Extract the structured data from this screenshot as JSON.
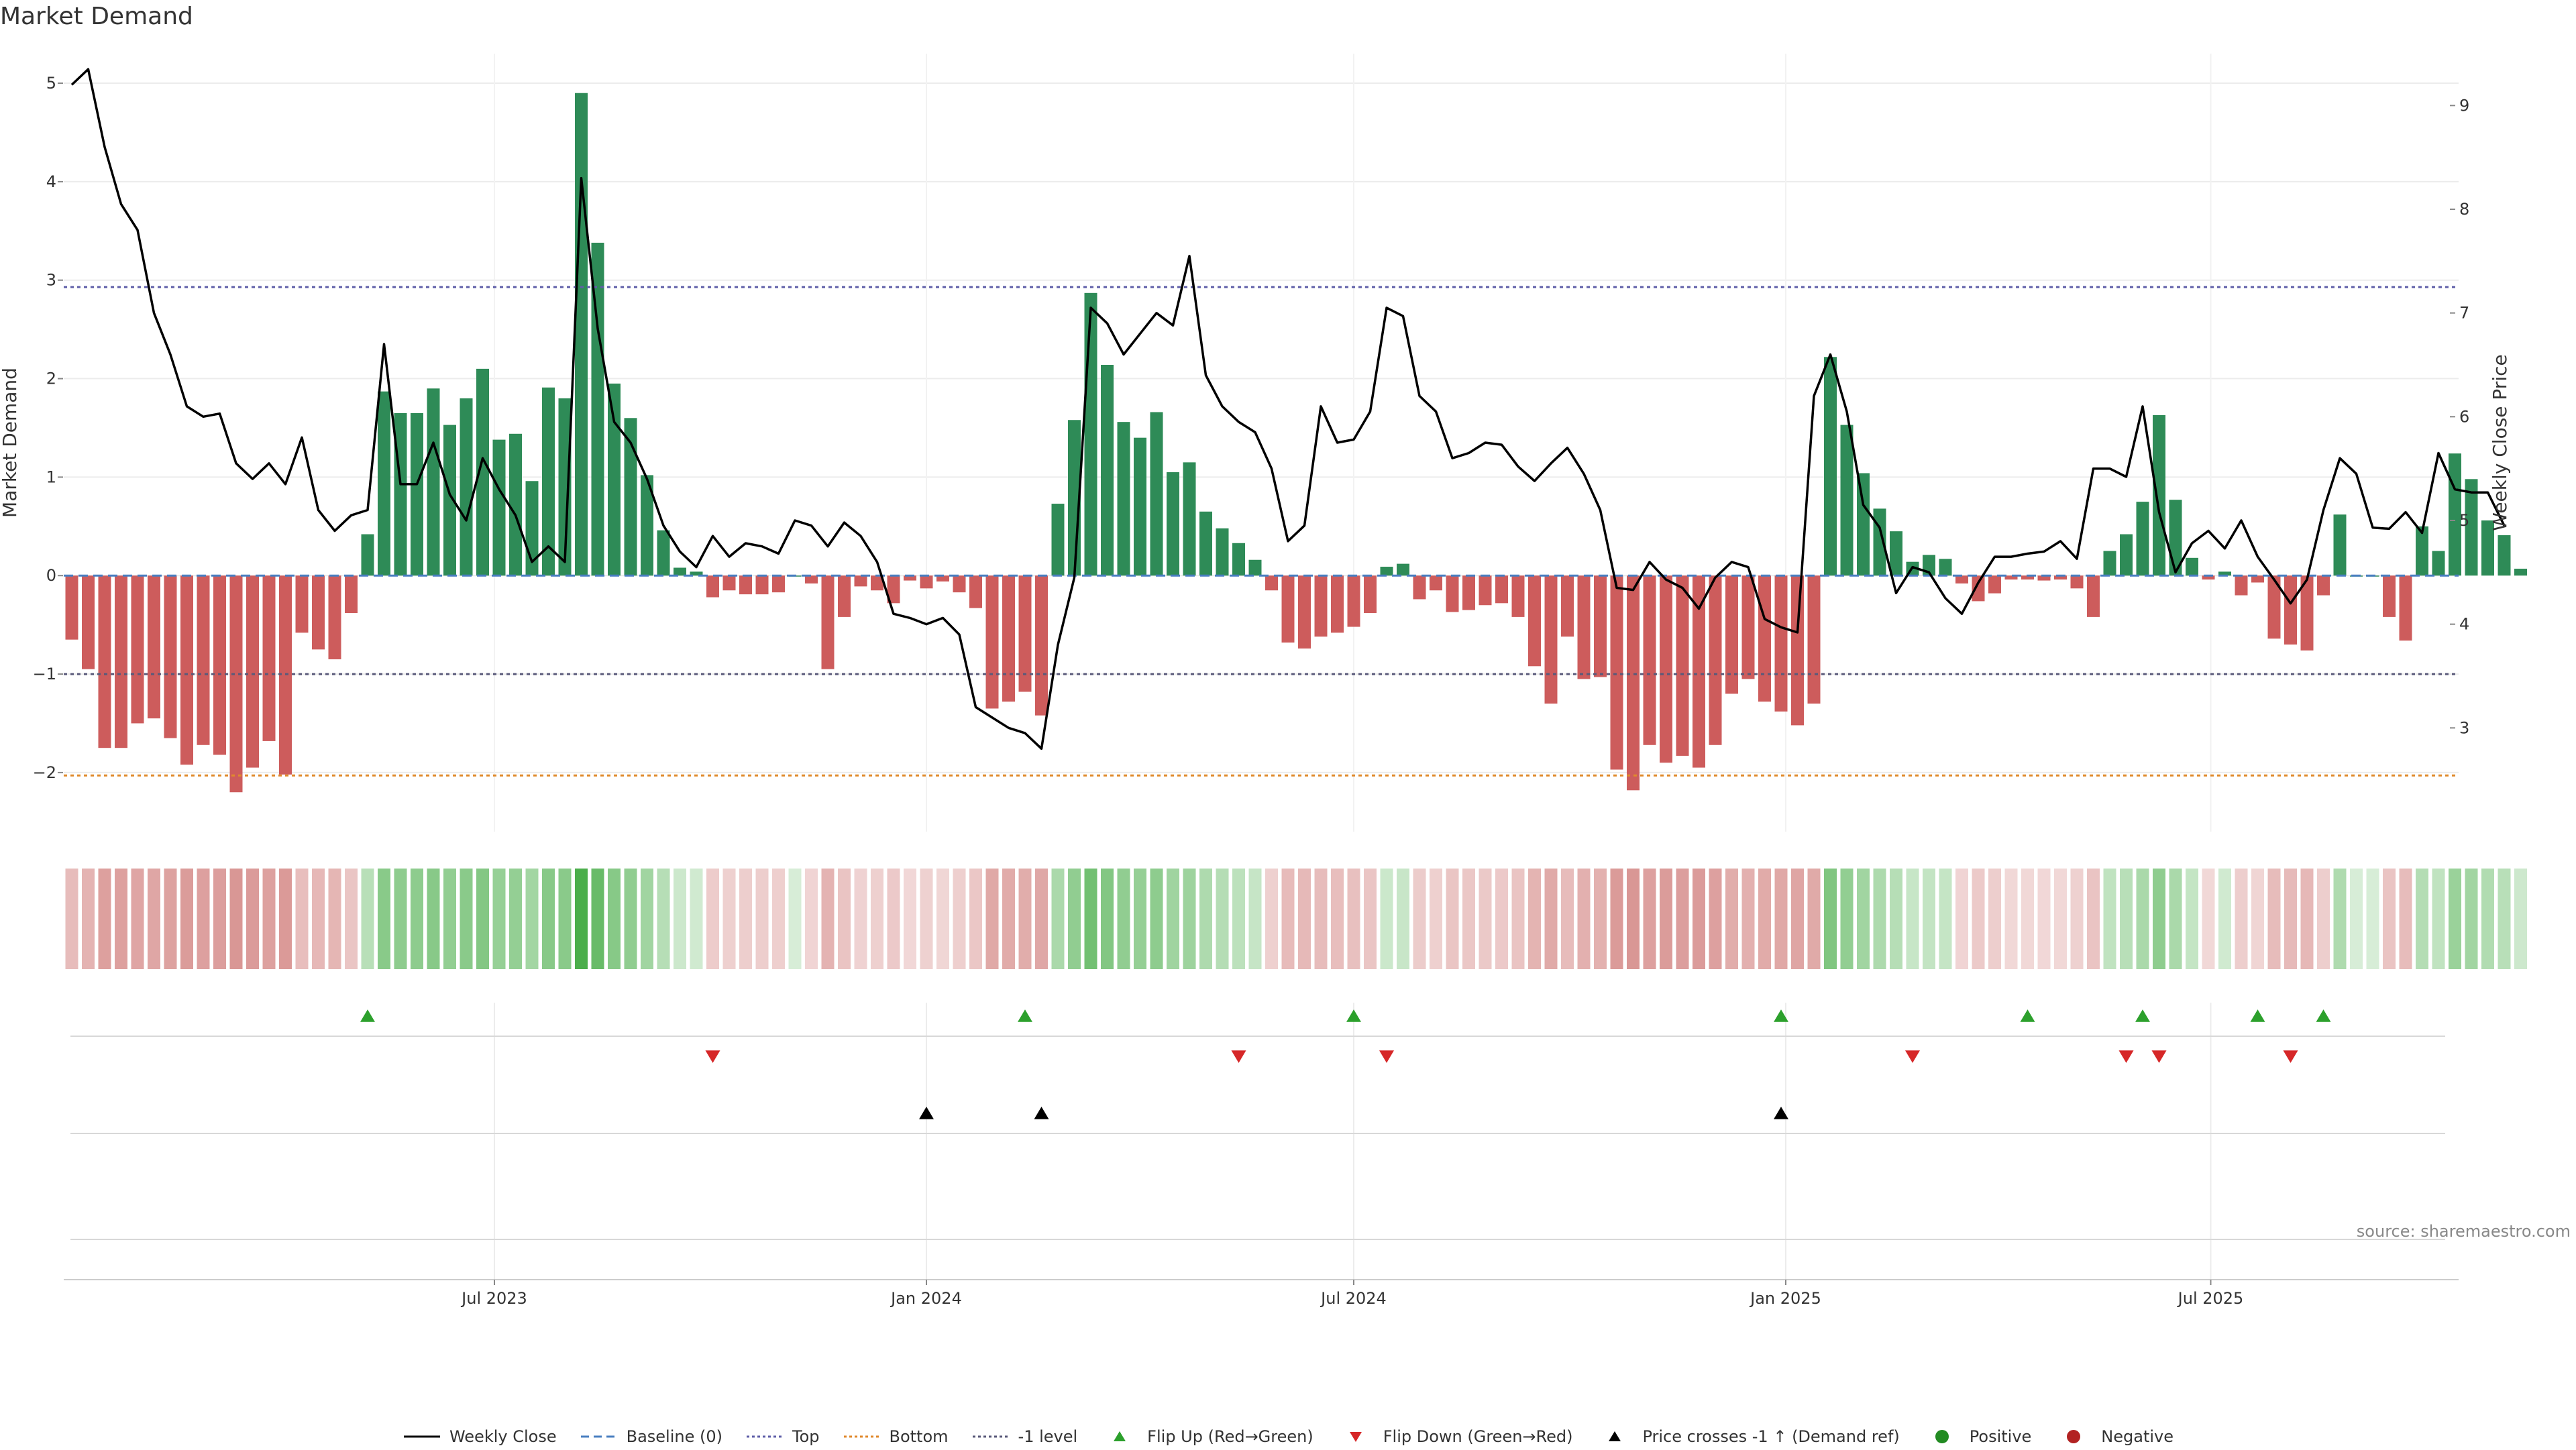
{
  "title": "Market Demand",
  "source": "source: sharemaestro.com",
  "colors": {
    "positive_bar": "#2e8b57",
    "negative_bar": "#cd5c5c",
    "price_line": "#000000",
    "baseline": "#4a7fc1",
    "top_line": "#5f5fa8",
    "bottom_line": "#e08a2c",
    "minus_one_line": "#5a5a7a",
    "flip_up": "#2ca02c",
    "flip_down": "#d62728",
    "price_cross": "#000000"
  },
  "legend": [
    {
      "label": "Weekly Close",
      "kind": "line",
      "color": "#000000"
    },
    {
      "label": "Baseline (0)",
      "kind": "dashed",
      "color": "#4a7fc1"
    },
    {
      "label": "Top",
      "kind": "dotted",
      "color": "#5f5fa8"
    },
    {
      "label": "Bottom",
      "kind": "dotted",
      "color": "#e08a2c"
    },
    {
      "label": "-1 level",
      "kind": "dotted",
      "color": "#5a5a7a"
    },
    {
      "label": "Flip Up (Red→Green)",
      "kind": "tri-up",
      "color": "#2ca02c"
    },
    {
      "label": "Flip Down (Green→Red)",
      "kind": "tri-down",
      "color": "#d62728"
    },
    {
      "label": "Price crosses -1 ↑ (Demand ref)",
      "kind": "tri-up",
      "color": "#000000"
    },
    {
      "label": "Positive",
      "kind": "dot",
      "color": "#228b22"
    },
    {
      "label": "Negative",
      "kind": "dot",
      "color": "#b22222"
    }
  ],
  "chart_data": {
    "type": "bar",
    "x_axis": {
      "type": "date",
      "tick_labels": [
        "Jul 2023",
        "Jan 2024",
        "Jul 2024",
        "Jan 2025",
        "Jul 2025"
      ],
      "tick_dates": [
        "2023-07-01",
        "2024-01-01",
        "2024-07-01",
        "2025-01-01",
        "2025-07-01"
      ]
    },
    "y_left": {
      "label": "Market Demand",
      "ticks": [
        -2,
        -1,
        0,
        1,
        2,
        3,
        4,
        5
      ],
      "range": [
        -2.6,
        5.3
      ]
    },
    "y_right": {
      "label": "Weekly Close Price",
      "ticks": [
        3,
        4,
        5,
        6,
        7,
        8,
        9
      ],
      "range": [
        2.0,
        9.5
      ]
    },
    "reference_lines": {
      "baseline": 0,
      "top": 2.93,
      "bottom": -2.03,
      "minus_one": -1.0
    },
    "weeks_start": "2023-01-02",
    "demand": [
      -0.65,
      -0.95,
      -1.75,
      -1.75,
      -1.5,
      -1.45,
      -1.65,
      -1.92,
      -1.72,
      -1.82,
      -2.2,
      -1.95,
      -1.68,
      -2.02,
      -0.58,
      -0.75,
      -0.85,
      -0.38,
      0.42,
      1.87,
      1.65,
      1.65,
      1.9,
      1.53,
      1.8,
      2.1,
      1.38,
      1.44,
      0.96,
      1.91,
      1.8,
      4.9,
      3.38,
      1.95,
      1.6,
      1.02,
      0.46,
      0.08,
      0.04,
      -0.22,
      -0.15,
      -0.19,
      -0.19,
      -0.17,
      0.0,
      -0.08,
      -0.95,
      -0.42,
      -0.11,
      -0.15,
      -0.28,
      -0.05,
      -0.13,
      -0.06,
      -0.17,
      -0.33,
      -1.35,
      -1.28,
      -1.18,
      -1.42,
      0.73,
      1.58,
      2.87,
      2.14,
      1.56,
      1.4,
      1.66,
      1.05,
      1.15,
      0.65,
      0.48,
      0.33,
      0.16,
      -0.15,
      -0.68,
      -0.74,
      -0.62,
      -0.58,
      -0.52,
      -0.38,
      0.09,
      0.12,
      -0.24,
      -0.15,
      -0.37,
      -0.35,
      -0.3,
      -0.28,
      -0.42,
      -0.92,
      -1.3,
      -0.62,
      -1.05,
      -1.03,
      -1.97,
      -2.18,
      -1.72,
      -1.9,
      -1.83,
      -1.95,
      -1.72,
      -1.2,
      -1.05,
      -1.28,
      -1.38,
      -1.52,
      -1.3,
      2.22,
      1.53,
      1.04,
      0.68,
      0.45,
      0.14,
      0.21,
      0.17,
      -0.08,
      -0.26,
      -0.18,
      -0.04,
      -0.04,
      -0.05,
      -0.04,
      -0.13,
      -0.42,
      0.25,
      0.42,
      0.75,
      1.63,
      0.77,
      0.18,
      -0.04,
      0.04,
      -0.2,
      -0.07,
      -0.64,
      -0.7,
      -0.76,
      -0.2,
      0.62,
      0.0,
      0.0,
      -0.42,
      -0.66,
      0.5,
      0.25,
      1.24,
      0.98,
      0.56,
      0.41,
      0.07
    ],
    "price": [
      9.2,
      9.35,
      8.6,
      8.05,
      7.8,
      7.0,
      6.6,
      6.1,
      6.0,
      6.03,
      5.55,
      5.4,
      5.55,
      5.35,
      5.8,
      5.1,
      4.9,
      5.05,
      5.1,
      6.7,
      5.35,
      5.35,
      5.75,
      5.25,
      5.0,
      5.6,
      5.3,
      5.05,
      4.6,
      4.75,
      4.6,
      8.3,
      6.85,
      5.95,
      5.75,
      5.4,
      4.95,
      4.7,
      4.55,
      4.85,
      4.65,
      4.78,
      4.75,
      4.68,
      5.0,
      4.95,
      4.75,
      4.98,
      4.85,
      4.6,
      4.1,
      4.06,
      4.0,
      4.06,
      3.9,
      3.2,
      3.1,
      3.0,
      2.95,
      2.8,
      3.8,
      4.45,
      7.05,
      6.9,
      6.6,
      6.8,
      7.0,
      6.88,
      7.55,
      6.4,
      6.1,
      5.95,
      5.85,
      5.5,
      4.8,
      4.95,
      6.1,
      5.75,
      5.78,
      6.05,
      7.05,
      6.97,
      6.2,
      6.05,
      5.6,
      5.65,
      5.75,
      5.73,
      5.52,
      5.38,
      5.55,
      5.7,
      5.45,
      5.1,
      4.35,
      4.33,
      4.6,
      4.43,
      4.35,
      4.15,
      4.45,
      4.6,
      4.55,
      4.05,
      3.97,
      3.92,
      6.2,
      6.6,
      6.05,
      5.15,
      4.93,
      4.3,
      4.55,
      4.5,
      4.25,
      4.1,
      4.4,
      4.65,
      4.65,
      4.68,
      4.7,
      4.8,
      4.63,
      5.5,
      5.5,
      5.42,
      6.1,
      5.08,
      4.5,
      4.78,
      4.9,
      4.73,
      5.0,
      4.65,
      4.43,
      4.2,
      4.43,
      5.1,
      5.6,
      5.45,
      4.93,
      4.92,
      5.08,
      4.88,
      5.65,
      5.3,
      5.27,
      5.27,
      4.95
    ],
    "flip_up_weeks": [
      18,
      58,
      78,
      104,
      119,
      126,
      133,
      137
    ],
    "flip_down_weeks": [
      39,
      71,
      80,
      112,
      125,
      127,
      135
    ],
    "price_cross_weeks": [
      52,
      59,
      104
    ]
  }
}
